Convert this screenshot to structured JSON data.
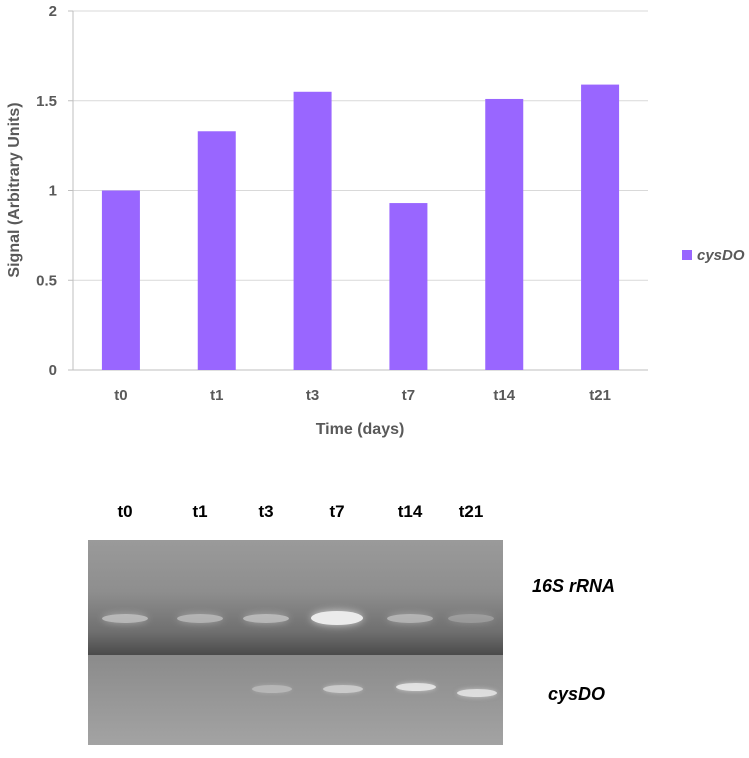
{
  "chart_data": {
    "type": "bar",
    "categories": [
      "t0",
      "t1",
      "t3",
      "t7",
      "t14",
      "t21"
    ],
    "series": [
      {
        "name": "cysDO",
        "values": [
          1.0,
          1.33,
          1.55,
          0.93,
          1.51,
          1.59
        ],
        "color": "#9966FF"
      }
    ],
    "xlabel": "Time (days)",
    "ylabel": "Signal (Arbitrary Units)",
    "ylim": [
      0,
      2
    ],
    "yticks": [
      "0",
      "0.5",
      "1",
      "1.5",
      "2"
    ],
    "grid": true,
    "legend": "right"
  },
  "gel": {
    "lane_labels": [
      "t0",
      "t1",
      "t3",
      "t7",
      "t14",
      "t21"
    ],
    "top_panel_label": "16S rRNA",
    "bottom_panel_label": "cysDO",
    "top_band_intensity": [
      0.55,
      0.5,
      0.55,
      1.0,
      0.5,
      0.3
    ],
    "bottom_band_intensity": [
      0.0,
      0.0,
      0.35,
      0.55,
      0.8,
      0.75
    ]
  }
}
